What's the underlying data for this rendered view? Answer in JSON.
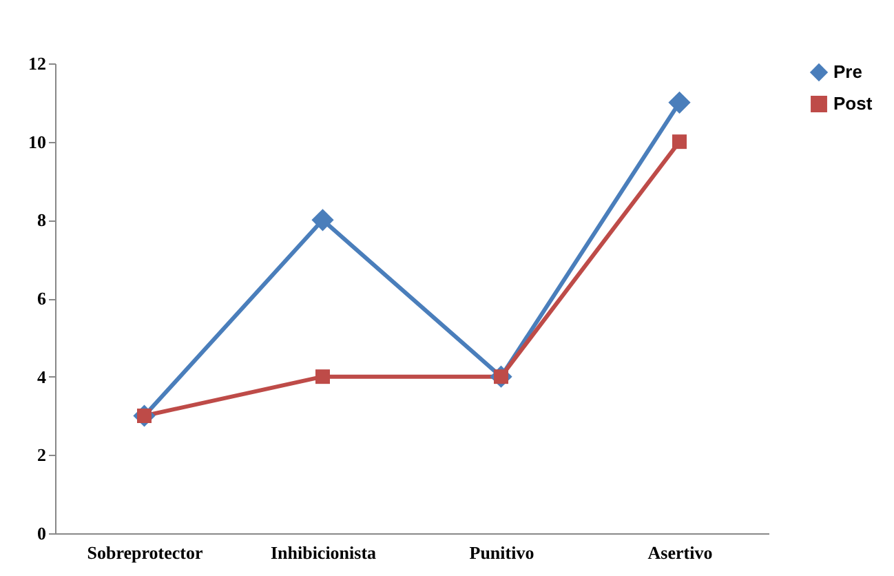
{
  "chart_data": {
    "type": "line",
    "categories": [
      "Sobreprotector",
      "Inhibicionista",
      "Punitivo",
      "Asertivo"
    ],
    "series": [
      {
        "name": "Pre",
        "color": "#4a7ebb",
        "marker": "diamond",
        "values": [
          3,
          8,
          4,
          11
        ]
      },
      {
        "name": "Post",
        "color": "#be4b48",
        "marker": "square",
        "values": [
          3,
          4,
          4,
          10
        ]
      }
    ],
    "ylim": [
      0,
      12
    ],
    "yticks": [
      0,
      2,
      4,
      6,
      8,
      10,
      12
    ],
    "grid": false,
    "legend": "right"
  }
}
